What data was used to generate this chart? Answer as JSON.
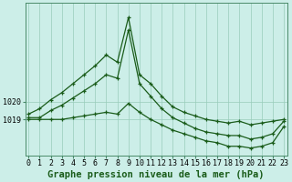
{
  "title": "Graphe pression niveau de la mer (hPa)",
  "bg_color": "#cceee8",
  "grid_color": "#99ccbb",
  "line_color": "#1a5c1a",
  "hours": [
    0,
    1,
    2,
    3,
    4,
    5,
    6,
    7,
    8,
    9,
    10,
    11,
    12,
    13,
    14,
    15,
    16,
    17,
    18,
    19,
    20,
    21,
    22,
    23
  ],
  "line_top": [
    1019.3,
    1019.6,
    1020.1,
    1020.5,
    1021.0,
    1021.5,
    1022.0,
    1022.6,
    1022.2,
    1024.7,
    1021.5,
    1021.0,
    1020.3,
    1019.7,
    1019.4,
    1019.2,
    1019.0,
    1018.9,
    1018.8,
    1018.9,
    1018.7,
    1018.8,
    1018.9,
    1019.0
  ],
  "line_mid": [
    1019.1,
    1019.1,
    1019.5,
    1019.8,
    1020.2,
    1020.6,
    1021.0,
    1021.5,
    1021.3,
    1024.0,
    1021.0,
    1020.3,
    1019.6,
    1019.1,
    1018.8,
    1018.5,
    1018.3,
    1018.2,
    1018.1,
    1018.1,
    1017.9,
    1018.0,
    1018.2,
    1018.9
  ],
  "line_bot": [
    1019.0,
    1019.0,
    1019.0,
    1019.0,
    1019.1,
    1019.2,
    1019.3,
    1019.4,
    1019.3,
    1019.9,
    1019.4,
    1019.0,
    1018.7,
    1018.4,
    1018.2,
    1018.0,
    1017.8,
    1017.7,
    1017.5,
    1017.5,
    1017.4,
    1017.5,
    1017.7,
    1018.6
  ],
  "ylim_min": 1017.0,
  "ylim_max": 1025.5,
  "yticks": [
    1019,
    1020
  ],
  "xlim_min": 0,
  "xlim_max": 23,
  "title_fontsize": 7.5,
  "tick_fontsize": 6.0
}
